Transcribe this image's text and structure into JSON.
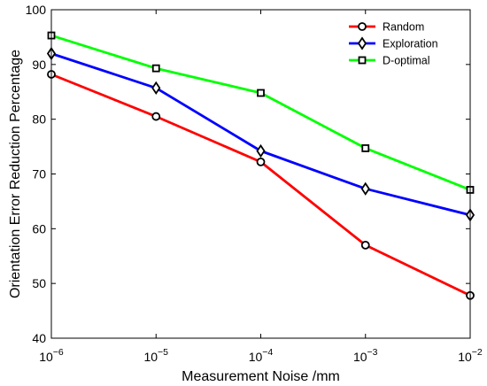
{
  "chart_data": {
    "type": "line",
    "xlabel": "Measurement Noise /mm",
    "ylabel": "Orientation Error Reduction Percentage",
    "x": [
      -6,
      -5,
      -4,
      -3,
      -2
    ],
    "x_tick_base": "10",
    "x_tick_exponents": [
      "−6",
      "−5",
      "−4",
      "−3",
      "−2"
    ],
    "x_scale": "log",
    "xlim": [
      -6,
      -2
    ],
    "ylim": [
      40,
      100
    ],
    "y_ticks": [
      40,
      50,
      60,
      70,
      80,
      90,
      100
    ],
    "grid": false,
    "legend_position": "top-right",
    "series": [
      {
        "name": "Random",
        "color": "#ff0000",
        "marker": "circle",
        "values": [
          88.2,
          80.5,
          72.2,
          57.0,
          47.8
        ]
      },
      {
        "name": "Exploration",
        "color": "#0000ff",
        "marker": "diamond",
        "values": [
          92.0,
          85.7,
          74.2,
          67.3,
          62.5
        ]
      },
      {
        "name": "D-optimal",
        "color": "#00ff00",
        "marker": "square",
        "values": [
          95.3,
          89.3,
          84.8,
          74.7,
          67.1
        ]
      }
    ]
  }
}
